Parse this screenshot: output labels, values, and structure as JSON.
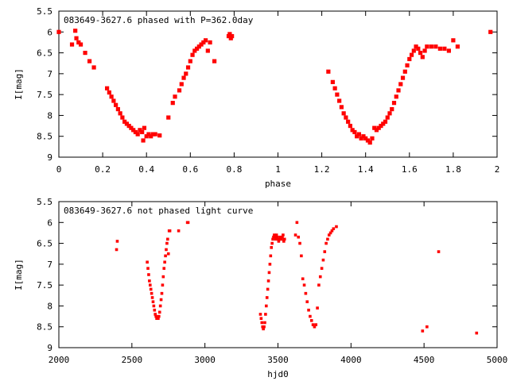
{
  "chart_data": [
    {
      "type": "scatter",
      "title": "083649-3627.6 phased with P=362.0day",
      "xlabel": "phase",
      "ylabel": "I[mag]",
      "xlim": [
        0,
        2
      ],
      "ylim": [
        5.5,
        9
      ],
      "y_inverted": true,
      "xticks": [
        "0",
        "0.2",
        "0.4",
        "0.6",
        "0.8",
        "1",
        "1.2",
        "1.4",
        "1.6",
        "1.8",
        "2"
      ],
      "yticks": [
        "5.5",
        "6",
        "6.5",
        "7",
        "7.5",
        "8",
        "8.5",
        "9"
      ],
      "marker_color": "#ff0000",
      "series": [
        {
          "x": [
            0.0,
            0.06,
            0.075,
            0.08,
            0.09,
            0.1,
            0.12,
            0.14,
            0.16,
            0.22,
            0.23,
            0.24,
            0.25,
            0.26,
            0.27,
            0.28,
            0.29,
            0.3,
            0.31,
            0.32,
            0.33,
            0.34,
            0.35,
            0.36,
            0.37,
            0.38,
            0.385,
            0.39,
            0.4,
            0.41,
            0.42,
            0.43,
            0.44,
            0.46,
            0.5,
            0.52,
            0.53,
            0.55,
            0.56,
            0.57,
            0.58,
            0.59,
            0.6,
            0.61,
            0.62,
            0.63,
            0.64,
            0.65,
            0.66,
            0.67,
            0.68,
            0.69,
            0.71,
            0.775,
            0.78,
            0.785,
            0.79,
            1.23,
            1.25,
            1.26,
            1.27,
            1.28,
            1.29,
            1.3,
            1.31,
            1.32,
            1.33,
            1.34,
            1.35,
            1.36,
            1.37,
            1.38,
            1.39,
            1.4,
            1.41,
            1.42,
            1.43,
            1.44,
            1.45,
            1.46,
            1.47,
            1.48,
            1.49,
            1.5,
            1.51,
            1.52,
            1.53,
            1.54,
            1.55,
            1.56,
            1.57,
            1.58,
            1.59,
            1.6,
            1.61,
            1.62,
            1.63,
            1.64,
            1.65,
            1.66,
            1.67,
            1.68,
            1.7,
            1.72,
            1.74,
            1.76,
            1.78,
            1.8,
            1.82,
            1.97
          ],
          "y": [
            6.0,
            6.3,
            5.97,
            6.15,
            6.25,
            6.3,
            6.5,
            6.7,
            6.85,
            7.35,
            7.45,
            7.55,
            7.65,
            7.75,
            7.85,
            7.95,
            8.05,
            8.15,
            8.2,
            8.25,
            8.3,
            8.35,
            8.4,
            8.45,
            8.35,
            8.4,
            8.6,
            8.3,
            8.5,
            8.45,
            8.5,
            8.45,
            8.45,
            8.48,
            8.05,
            7.7,
            7.55,
            7.4,
            7.25,
            7.1,
            7.0,
            6.85,
            6.7,
            6.55,
            6.45,
            6.4,
            6.35,
            6.3,
            6.25,
            6.2,
            6.45,
            6.25,
            6.7,
            6.1,
            6.05,
            6.15,
            6.1,
            6.95,
            7.2,
            7.35,
            7.5,
            7.65,
            7.8,
            7.95,
            8.05,
            8.15,
            8.25,
            8.35,
            8.4,
            8.5,
            8.45,
            8.55,
            8.5,
            8.55,
            8.6,
            8.65,
            8.55,
            8.3,
            8.35,
            8.3,
            8.25,
            8.2,
            8.15,
            8.05,
            7.95,
            7.85,
            7.7,
            7.55,
            7.4,
            7.25,
            7.1,
            6.95,
            6.8,
            6.65,
            6.55,
            6.45,
            6.35,
            6.4,
            6.5,
            6.6,
            6.45,
            6.35,
            6.35,
            6.35,
            6.4,
            6.4,
            6.45,
            6.2,
            6.35,
            6.0
          ]
        }
      ]
    },
    {
      "type": "scatter",
      "title": "083649-3627.6 not phased light curve",
      "xlabel": "hjd0",
      "ylabel": "I[mag]",
      "xlim": [
        2000,
        5000
      ],
      "ylim": [
        5.5,
        9
      ],
      "y_inverted": true,
      "xticks": [
        "2000",
        "2500",
        "3000",
        "3500",
        "4000",
        "4500",
        "5000"
      ],
      "yticks": [
        "5.5",
        "6",
        "6.5",
        "7",
        "7.5",
        "8",
        "8.5",
        "9"
      ],
      "marker_color": "#ff0000",
      "series": [
        {
          "x": [
            2395,
            2400,
            2605,
            2610,
            2615,
            2620,
            2625,
            2630,
            2635,
            2640,
            2645,
            2650,
            2655,
            2660,
            2665,
            2670,
            2675,
            2680,
            2685,
            2690,
            2695,
            2700,
            2705,
            2710,
            2715,
            2720,
            2725,
            2730,
            2735,
            2740,
            2745,
            2750,
            2755,
            2760,
            2820,
            2880,
            2885,
            3380,
            3385,
            3390,
            3395,
            3400,
            3405,
            3410,
            3415,
            3420,
            3425,
            3430,
            3435,
            3440,
            3445,
            3450,
            3455,
            3460,
            3465,
            3470,
            3475,
            3480,
            3485,
            3490,
            3495,
            3500,
            3505,
            3510,
            3515,
            3520,
            3525,
            3530,
            3535,
            3540,
            3545,
            3620,
            3630,
            3640,
            3650,
            3660,
            3670,
            3680,
            3690,
            3700,
            3710,
            3720,
            3730,
            3740,
            3750,
            3760,
            3770,
            3780,
            3790,
            3800,
            3810,
            3820,
            3830,
            3840,
            3850,
            3860,
            3870,
            3880,
            3900,
            4490,
            4520,
            4600,
            4860
          ],
          "y": [
            6.65,
            6.45,
            6.95,
            7.1,
            7.25,
            7.4,
            7.5,
            7.6,
            7.7,
            7.8,
            7.9,
            8.0,
            8.1,
            8.2,
            8.25,
            8.3,
            8.3,
            8.3,
            8.25,
            8.15,
            8.0,
            7.85,
            7.7,
            7.5,
            7.3,
            7.1,
            6.95,
            6.8,
            6.65,
            6.5,
            6.4,
            6.75,
            6.2,
            6.2,
            6.2,
            6.0,
            6.0,
            8.2,
            8.3,
            8.4,
            8.5,
            8.55,
            8.5,
            8.4,
            8.2,
            8.0,
            7.8,
            7.6,
            7.4,
            7.2,
            7.0,
            6.8,
            6.6,
            6.5,
            6.4,
            6.35,
            6.3,
            6.35,
            6.4,
            6.3,
            6.35,
            6.4,
            6.45,
            6.4,
            6.35,
            6.4,
            6.4,
            6.35,
            6.3,
            6.45,
            6.4,
            6.3,
            6.0,
            6.35,
            6.5,
            6.8,
            7.35,
            7.5,
            7.7,
            7.9,
            8.1,
            8.25,
            8.35,
            8.45,
            8.5,
            8.45,
            8.05,
            7.5,
            7.3,
            7.1,
            6.9,
            6.7,
            6.5,
            6.4,
            6.3,
            6.25,
            6.2,
            6.15,
            6.1,
            8.6,
            8.5,
            6.7,
            8.65
          ]
        }
      ]
    }
  ]
}
